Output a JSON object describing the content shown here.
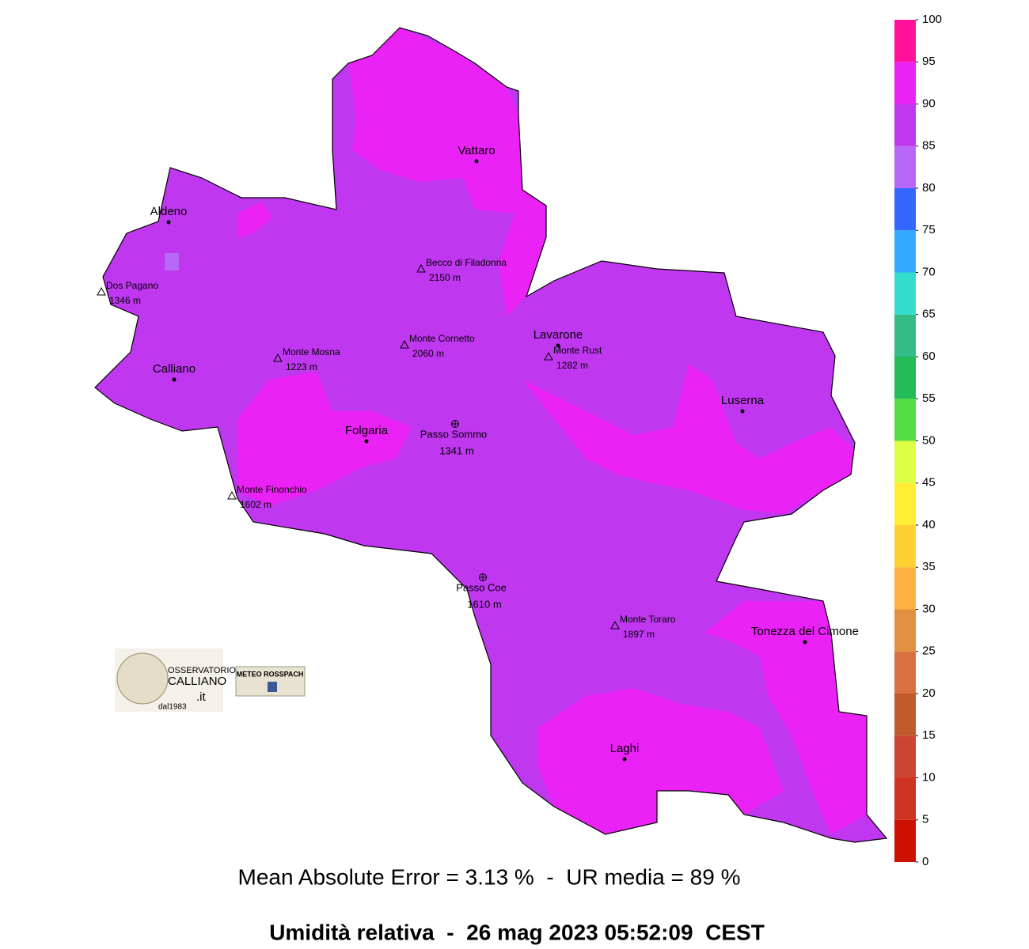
{
  "map": {
    "towns": [
      "Vattaro",
      "Aldeno",
      "Calliano",
      "Lavarone",
      "Folgaria",
      "Luserna",
      "Tonezza del Cimone",
      "Laghi"
    ],
    "peaks": [
      {
        "name": "Dos Pagano",
        "elevation": "1346 m"
      },
      {
        "name": "Becco di Filadonna",
        "elevation": "2150 m"
      },
      {
        "name": "Monte Cornetto",
        "elevation": "2060 m"
      },
      {
        "name": "Monte Mosna",
        "elevation": "1223 m"
      },
      {
        "name": "Monte Rust",
        "elevation": "1282 m"
      },
      {
        "name": "Monte Finonchio",
        "elevation": "1602 m"
      },
      {
        "name": "Monte Toraro",
        "elevation": "1897 m"
      }
    ],
    "passes": [
      {
        "name": "Passo Sommo",
        "elevation": "1341 m"
      },
      {
        "name": "Passo Coe",
        "elevation": "1610 m"
      }
    ]
  },
  "legend": {
    "ticks": [
      0,
      5,
      10,
      15,
      20,
      25,
      30,
      35,
      40,
      45,
      50,
      55,
      60,
      65,
      70,
      75,
      80,
      85,
      90,
      95,
      100
    ],
    "colors": [
      "#cc1100",
      "#cc3322",
      "#cc4433",
      "#c05a2a",
      "#d97040",
      "#e09040",
      "#ffb040",
      "#ffd033",
      "#ffee33",
      "#ddff44",
      "#55dd44",
      "#22bb55",
      "#33bb88",
      "#33ddcc",
      "#33aaff",
      "#3366ff",
      "#b866f5",
      "#c037f0",
      "#ea22f5",
      "#ff119a"
    ]
  },
  "logos": {
    "observatory": [
      "OSSERVATORIO",
      "CALLIANO",
      ".it",
      "dal1983"
    ],
    "facebook": "METEO ROSSPACH"
  },
  "footer": {
    "stats": "Mean Absolute Error = 3.13 %  -  UR media = 89 %",
    "title": "Umidità relativa  -  26 mag 2023 05:52:09  CEST"
  }
}
